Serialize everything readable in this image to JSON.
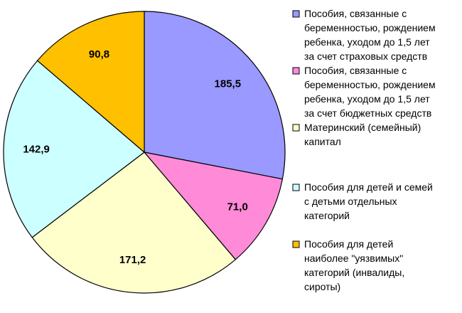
{
  "chart_data": {
    "type": "pie",
    "categories": [
      "Пособия, связанные с беременностью, рождением ребенка, уходом до 1,5 лет за счет страховых средств",
      "Пособия, связанные с беременностью, рождением ребенка, уходом до 1,5 лет за счет бюджетных средств",
      "Материнский (семейный) капитал",
      "Пособия для детей и семей с детьми отдельных категорий",
      "Пособия для детей наиболее \"уязвимых\" категорий (инвалиды, сироты)"
    ],
    "values": [
      185.5,
      71.0,
      171.2,
      142.9,
      90.8
    ],
    "value_labels": [
      "185,5",
      "71,0",
      "171,2",
      "142,9",
      "90,8"
    ],
    "colors": [
      "#9999ff",
      "#ff8ad8",
      "#ffffcc",
      "#ccffff",
      "#ffc000"
    ],
    "legend_lines": [
      [
        "Пособия, связанные с",
        "беременностью, рождением",
        "ребенка, уходом до 1,5 лет",
        "за счет страховых средств"
      ],
      [
        "Пособия, связанные с",
        "беременностью, рождением",
        "ребенка, уходом до 1,5 лет",
        "за счет бюджетных средств"
      ],
      [
        "Материнский (семейный)",
        "капитал"
      ],
      [
        "Пособия для детей и семей",
        "с детьми отдельных",
        "категорий"
      ],
      [
        "Пособия для детей",
        "наиболее \"уязвимых\"",
        "категорий (инвалиды,",
        "сироты)"
      ]
    ],
    "start_angle_deg": 0,
    "direction": "clockwise",
    "legend_position": "right",
    "title": ""
  }
}
